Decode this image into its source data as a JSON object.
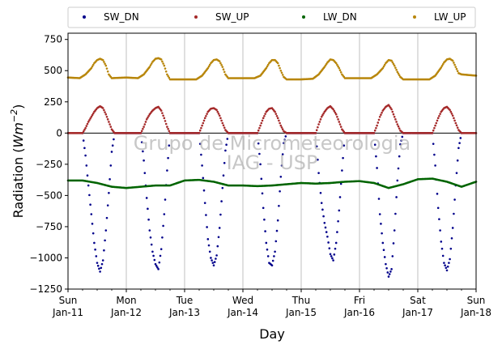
{
  "chart_data": {
    "type": "scatter",
    "title": "",
    "xlabel": "Day",
    "ylabel_prefix": "Radiation (",
    "ylabel_unit_base": "Wm",
    "ylabel_unit_exp": "−2",
    "ylabel_suffix": ")",
    "xlim": [
      0,
      7
    ],
    "ylim": [
      -1250,
      800
    ],
    "yticks": [
      800,
      750,
      500,
      250,
      0,
      -250,
      -500,
      -750,
      -1000,
      -1250
    ],
    "ytick_labels": [
      "750",
      "500",
      "250",
      "0",
      "−250",
      "−500",
      "−750",
      "−1000",
      "−1250"
    ],
    "xticks": [
      {
        "x": 0,
        "day": "Sun",
        "date": "Jan-11"
      },
      {
        "x": 1,
        "day": "Mon",
        "date": "Jan-12"
      },
      {
        "x": 2,
        "day": "Tue",
        "date": "Jan-13"
      },
      {
        "x": 3,
        "day": "Wed",
        "date": "Jan-14"
      },
      {
        "x": 4,
        "day": "Thu",
        "date": "Jan-15"
      },
      {
        "x": 5,
        "day": "Fri",
        "date": "Jan-16"
      },
      {
        "x": 6,
        "day": "Sat",
        "date": "Jan-17"
      },
      {
        "x": 7,
        "day": "Sun",
        "date": "Jan-18"
      }
    ],
    "grid": "vertical",
    "legend_position": "top",
    "zero_line": true,
    "watermark": [
      "Grupo de Micrometeorologia",
      "IAG - USP"
    ],
    "series": [
      {
        "name": "SW_DN",
        "color": "#00008b",
        "points": [
          [
            0.25,
            0
          ],
          [
            0.3,
            -180
          ],
          [
            0.35,
            -420
          ],
          [
            0.4,
            -650
          ],
          [
            0.45,
            -880
          ],
          [
            0.5,
            -1040
          ],
          [
            0.55,
            -1110
          ],
          [
            0.6,
            -1020
          ],
          [
            0.65,
            -780
          ],
          [
            0.7,
            -480
          ],
          [
            0.75,
            -150
          ],
          [
            0.8,
            0
          ],
          [
            1.25,
            0
          ],
          [
            1.3,
            -220
          ],
          [
            1.35,
            -520
          ],
          [
            1.4,
            -780
          ],
          [
            1.45,
            -950
          ],
          [
            1.5,
            -1050
          ],
          [
            1.55,
            -1090
          ],
          [
            1.6,
            -930
          ],
          [
            1.65,
            -650
          ],
          [
            1.7,
            -300
          ],
          [
            1.75,
            0
          ],
          [
            2.25,
            0
          ],
          [
            2.3,
            -260
          ],
          [
            2.35,
            -560
          ],
          [
            2.4,
            -850
          ],
          [
            2.45,
            -1000
          ],
          [
            2.5,
            -1060
          ],
          [
            2.55,
            -980
          ],
          [
            2.6,
            -760
          ],
          [
            2.65,
            -440
          ],
          [
            2.7,
            -140
          ],
          [
            2.75,
            0
          ],
          [
            3.25,
            0
          ],
          [
            3.3,
            -250
          ],
          [
            3.35,
            -600
          ],
          [
            3.4,
            -880
          ],
          [
            3.45,
            -1040
          ],
          [
            3.5,
            -1060
          ],
          [
            3.55,
            -950
          ],
          [
            3.6,
            -700
          ],
          [
            3.65,
            -350
          ],
          [
            3.7,
            -80
          ],
          [
            3.75,
            0
          ],
          [
            4.25,
            0
          ],
          [
            4.3,
            -320
          ],
          [
            4.35,
            -560
          ],
          [
            4.4,
            -720
          ],
          [
            4.45,
            -830
          ],
          [
            4.5,
            -970
          ],
          [
            4.55,
            -1020
          ],
          [
            4.6,
            -880
          ],
          [
            4.65,
            -620
          ],
          [
            4.7,
            -300
          ],
          [
            4.75,
            0
          ],
          [
            5.25,
            0
          ],
          [
            5.3,
            -280
          ],
          [
            5.35,
            -650
          ],
          [
            5.4,
            -880
          ],
          [
            5.45,
            -1050
          ],
          [
            5.5,
            -1150
          ],
          [
            5.55,
            -1090
          ],
          [
            5.6,
            -780
          ],
          [
            5.65,
            -380
          ],
          [
            5.7,
            -90
          ],
          [
            5.75,
            0
          ],
          [
            6.25,
            0
          ],
          [
            6.3,
            -260
          ],
          [
            6.35,
            -600
          ],
          [
            6.4,
            -870
          ],
          [
            6.45,
            -1040
          ],
          [
            6.5,
            -1100
          ],
          [
            6.55,
            -1010
          ],
          [
            6.6,
            -760
          ],
          [
            6.65,
            -420
          ],
          [
            6.7,
            -120
          ],
          [
            6.75,
            0
          ]
        ]
      },
      {
        "name": "SW_UP",
        "color": "#a52a2a",
        "points": [
          [
            0,
            0
          ],
          [
            0.25,
            0
          ],
          [
            0.3,
            40
          ],
          [
            0.35,
            90
          ],
          [
            0.4,
            130
          ],
          [
            0.45,
            170
          ],
          [
            0.5,
            200
          ],
          [
            0.55,
            215
          ],
          [
            0.6,
            200
          ],
          [
            0.65,
            150
          ],
          [
            0.7,
            90
          ],
          [
            0.75,
            30
          ],
          [
            0.8,
            0
          ],
          [
            1.0,
            0
          ],
          [
            1.25,
            0
          ],
          [
            1.3,
            50
          ],
          [
            1.35,
            110
          ],
          [
            1.4,
            150
          ],
          [
            1.45,
            180
          ],
          [
            1.5,
            200
          ],
          [
            1.55,
            210
          ],
          [
            1.6,
            180
          ],
          [
            1.65,
            120
          ],
          [
            1.7,
            50
          ],
          [
            1.75,
            0
          ],
          [
            2.0,
            0
          ],
          [
            2.25,
            0
          ],
          [
            2.3,
            60
          ],
          [
            2.35,
            120
          ],
          [
            2.4,
            170
          ],
          [
            2.45,
            195
          ],
          [
            2.5,
            200
          ],
          [
            2.55,
            185
          ],
          [
            2.6,
            140
          ],
          [
            2.65,
            80
          ],
          [
            2.7,
            25
          ],
          [
            2.75,
            0
          ],
          [
            3.0,
            0
          ],
          [
            3.25,
            0
          ],
          [
            3.3,
            60
          ],
          [
            3.35,
            120
          ],
          [
            3.4,
            170
          ],
          [
            3.45,
            195
          ],
          [
            3.5,
            200
          ],
          [
            3.55,
            170
          ],
          [
            3.6,
            120
          ],
          [
            3.65,
            60
          ],
          [
            3.7,
            15
          ],
          [
            3.75,
            0
          ],
          [
            4.0,
            0
          ],
          [
            4.25,
            0
          ],
          [
            4.3,
            70
          ],
          [
            4.35,
            130
          ],
          [
            4.4,
            170
          ],
          [
            4.45,
            200
          ],
          [
            4.5,
            215
          ],
          [
            4.55,
            190
          ],
          [
            4.6,
            150
          ],
          [
            4.65,
            90
          ],
          [
            4.7,
            30
          ],
          [
            4.75,
            0
          ],
          [
            5.0,
            0
          ],
          [
            5.25,
            0
          ],
          [
            5.3,
            60
          ],
          [
            5.35,
            130
          ],
          [
            5.4,
            180
          ],
          [
            5.45,
            210
          ],
          [
            5.5,
            225
          ],
          [
            5.55,
            190
          ],
          [
            5.6,
            130
          ],
          [
            5.65,
            70
          ],
          [
            5.7,
            20
          ],
          [
            5.75,
            0
          ],
          [
            6.0,
            0
          ],
          [
            6.25,
            0
          ],
          [
            6.3,
            60
          ],
          [
            6.35,
            120
          ],
          [
            6.4,
            170
          ],
          [
            6.45,
            200
          ],
          [
            6.5,
            210
          ],
          [
            6.55,
            185
          ],
          [
            6.6,
            140
          ],
          [
            6.65,
            80
          ],
          [
            6.7,
            25
          ],
          [
            6.75,
            0
          ],
          [
            7.0,
            0
          ]
        ]
      },
      {
        "name": "LW_DN",
        "color": "#006400",
        "points": [
          [
            0,
            -380
          ],
          [
            0.25,
            -380
          ],
          [
            0.5,
            -400
          ],
          [
            0.75,
            -430
          ],
          [
            1.0,
            -440
          ],
          [
            1.25,
            -430
          ],
          [
            1.5,
            -420
          ],
          [
            1.75,
            -420
          ],
          [
            2.0,
            -380
          ],
          [
            2.25,
            -375
          ],
          [
            2.5,
            -390
          ],
          [
            2.75,
            -420
          ],
          [
            3.0,
            -420
          ],
          [
            3.25,
            -425
          ],
          [
            3.5,
            -420
          ],
          [
            3.75,
            -410
          ],
          [
            4.0,
            -400
          ],
          [
            4.25,
            -405
          ],
          [
            4.5,
            -400
          ],
          [
            4.75,
            -390
          ],
          [
            5.0,
            -385
          ],
          [
            5.25,
            -400
          ],
          [
            5.5,
            -440
          ],
          [
            5.75,
            -410
          ],
          [
            6.0,
            -370
          ],
          [
            6.25,
            -365
          ],
          [
            6.5,
            -390
          ],
          [
            6.75,
            -430
          ],
          [
            7.0,
            -390
          ]
        ]
      },
      {
        "name": "LW_UP",
        "color": "#b8860b",
        "points": [
          [
            0,
            445
          ],
          [
            0.2,
            440
          ],
          [
            0.3,
            470
          ],
          [
            0.4,
            520
          ],
          [
            0.45,
            560
          ],
          [
            0.5,
            585
          ],
          [
            0.55,
            595
          ],
          [
            0.6,
            585
          ],
          [
            0.65,
            540
          ],
          [
            0.7,
            470
          ],
          [
            0.75,
            440
          ],
          [
            1.0,
            445
          ],
          [
            1.2,
            440
          ],
          [
            1.3,
            470
          ],
          [
            1.4,
            530
          ],
          [
            1.45,
            570
          ],
          [
            1.5,
            595
          ],
          [
            1.55,
            600
          ],
          [
            1.6,
            590
          ],
          [
            1.65,
            540
          ],
          [
            1.7,
            470
          ],
          [
            1.75,
            430
          ],
          [
            2.0,
            430
          ],
          [
            2.2,
            430
          ],
          [
            2.3,
            460
          ],
          [
            2.4,
            520
          ],
          [
            2.45,
            560
          ],
          [
            2.5,
            585
          ],
          [
            2.55,
            590
          ],
          [
            2.6,
            575
          ],
          [
            2.65,
            530
          ],
          [
            2.7,
            470
          ],
          [
            2.75,
            440
          ],
          [
            3.0,
            440
          ],
          [
            3.2,
            440
          ],
          [
            3.3,
            460
          ],
          [
            3.4,
            520
          ],
          [
            3.45,
            560
          ],
          [
            3.5,
            585
          ],
          [
            3.55,
            585
          ],
          [
            3.6,
            560
          ],
          [
            3.65,
            500
          ],
          [
            3.7,
            450
          ],
          [
            3.75,
            430
          ],
          [
            4.0,
            430
          ],
          [
            4.2,
            435
          ],
          [
            4.3,
            470
          ],
          [
            4.4,
            530
          ],
          [
            4.45,
            565
          ],
          [
            4.5,
            590
          ],
          [
            4.55,
            585
          ],
          [
            4.6,
            560
          ],
          [
            4.65,
            520
          ],
          [
            4.7,
            470
          ],
          [
            4.75,
            440
          ],
          [
            5.0,
            440
          ],
          [
            5.2,
            440
          ],
          [
            5.3,
            470
          ],
          [
            5.4,
            520
          ],
          [
            5.45,
            560
          ],
          [
            5.5,
            585
          ],
          [
            5.55,
            580
          ],
          [
            5.6,
            540
          ],
          [
            5.65,
            490
          ],
          [
            5.7,
            450
          ],
          [
            5.75,
            430
          ],
          [
            6.0,
            430
          ],
          [
            6.2,
            430
          ],
          [
            6.3,
            460
          ],
          [
            6.4,
            525
          ],
          [
            6.45,
            565
          ],
          [
            6.5,
            590
          ],
          [
            6.55,
            595
          ],
          [
            6.6,
            580
          ],
          [
            6.65,
            530
          ],
          [
            6.7,
            480
          ],
          [
            6.75,
            470
          ],
          [
            7.0,
            460
          ]
        ]
      }
    ]
  }
}
